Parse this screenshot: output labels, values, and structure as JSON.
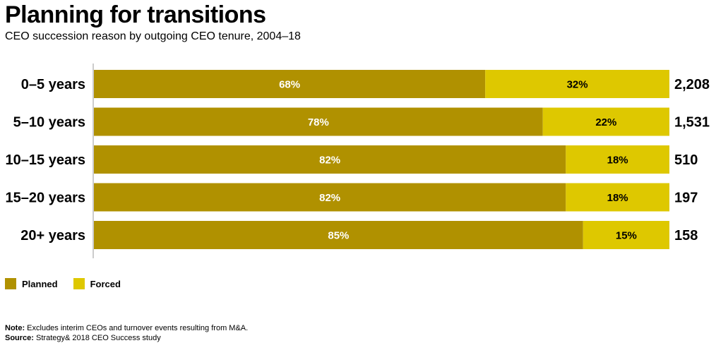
{
  "header": {
    "title": "Planning for transitions",
    "subtitle": "CEO succession reason by outgoing CEO tenure, 2004–18"
  },
  "colors": {
    "planned": "#b09100",
    "forced": "#dec800"
  },
  "legend": {
    "planned_label": "Planned",
    "forced_label": "Forced"
  },
  "notes": {
    "note_label": "Note:",
    "note_text": " Excludes interim CEOs and turnover events resulting from M&A.",
    "source_label": "Source:",
    "source_text": " Strategy& 2018 CEO Success study"
  },
  "chart_data": {
    "type": "bar",
    "orientation": "horizontal",
    "stacked": true,
    "normalized": true,
    "title": "Planning for transitions",
    "subtitle": "CEO succession reason by outgoing CEO tenure, 2004–18",
    "categories": [
      "0–5 years",
      "5–10 years",
      "10–15 years",
      "15–20 years",
      "20+ years"
    ],
    "series": [
      {
        "name": "Planned",
        "values": [
          68,
          78,
          82,
          82,
          85
        ],
        "labels": [
          "68%",
          "78%",
          "82%",
          "82%",
          "85%"
        ]
      },
      {
        "name": "Forced",
        "values": [
          32,
          22,
          18,
          18,
          15
        ],
        "labels": [
          "32%",
          "22%",
          "18%",
          "18%",
          "15%"
        ]
      }
    ],
    "totals": [
      "2,208",
      "1,531",
      "510",
      "197",
      "158"
    ],
    "xlim": [
      0,
      100
    ],
    "grid": false,
    "legend_position": "bottom-left"
  }
}
